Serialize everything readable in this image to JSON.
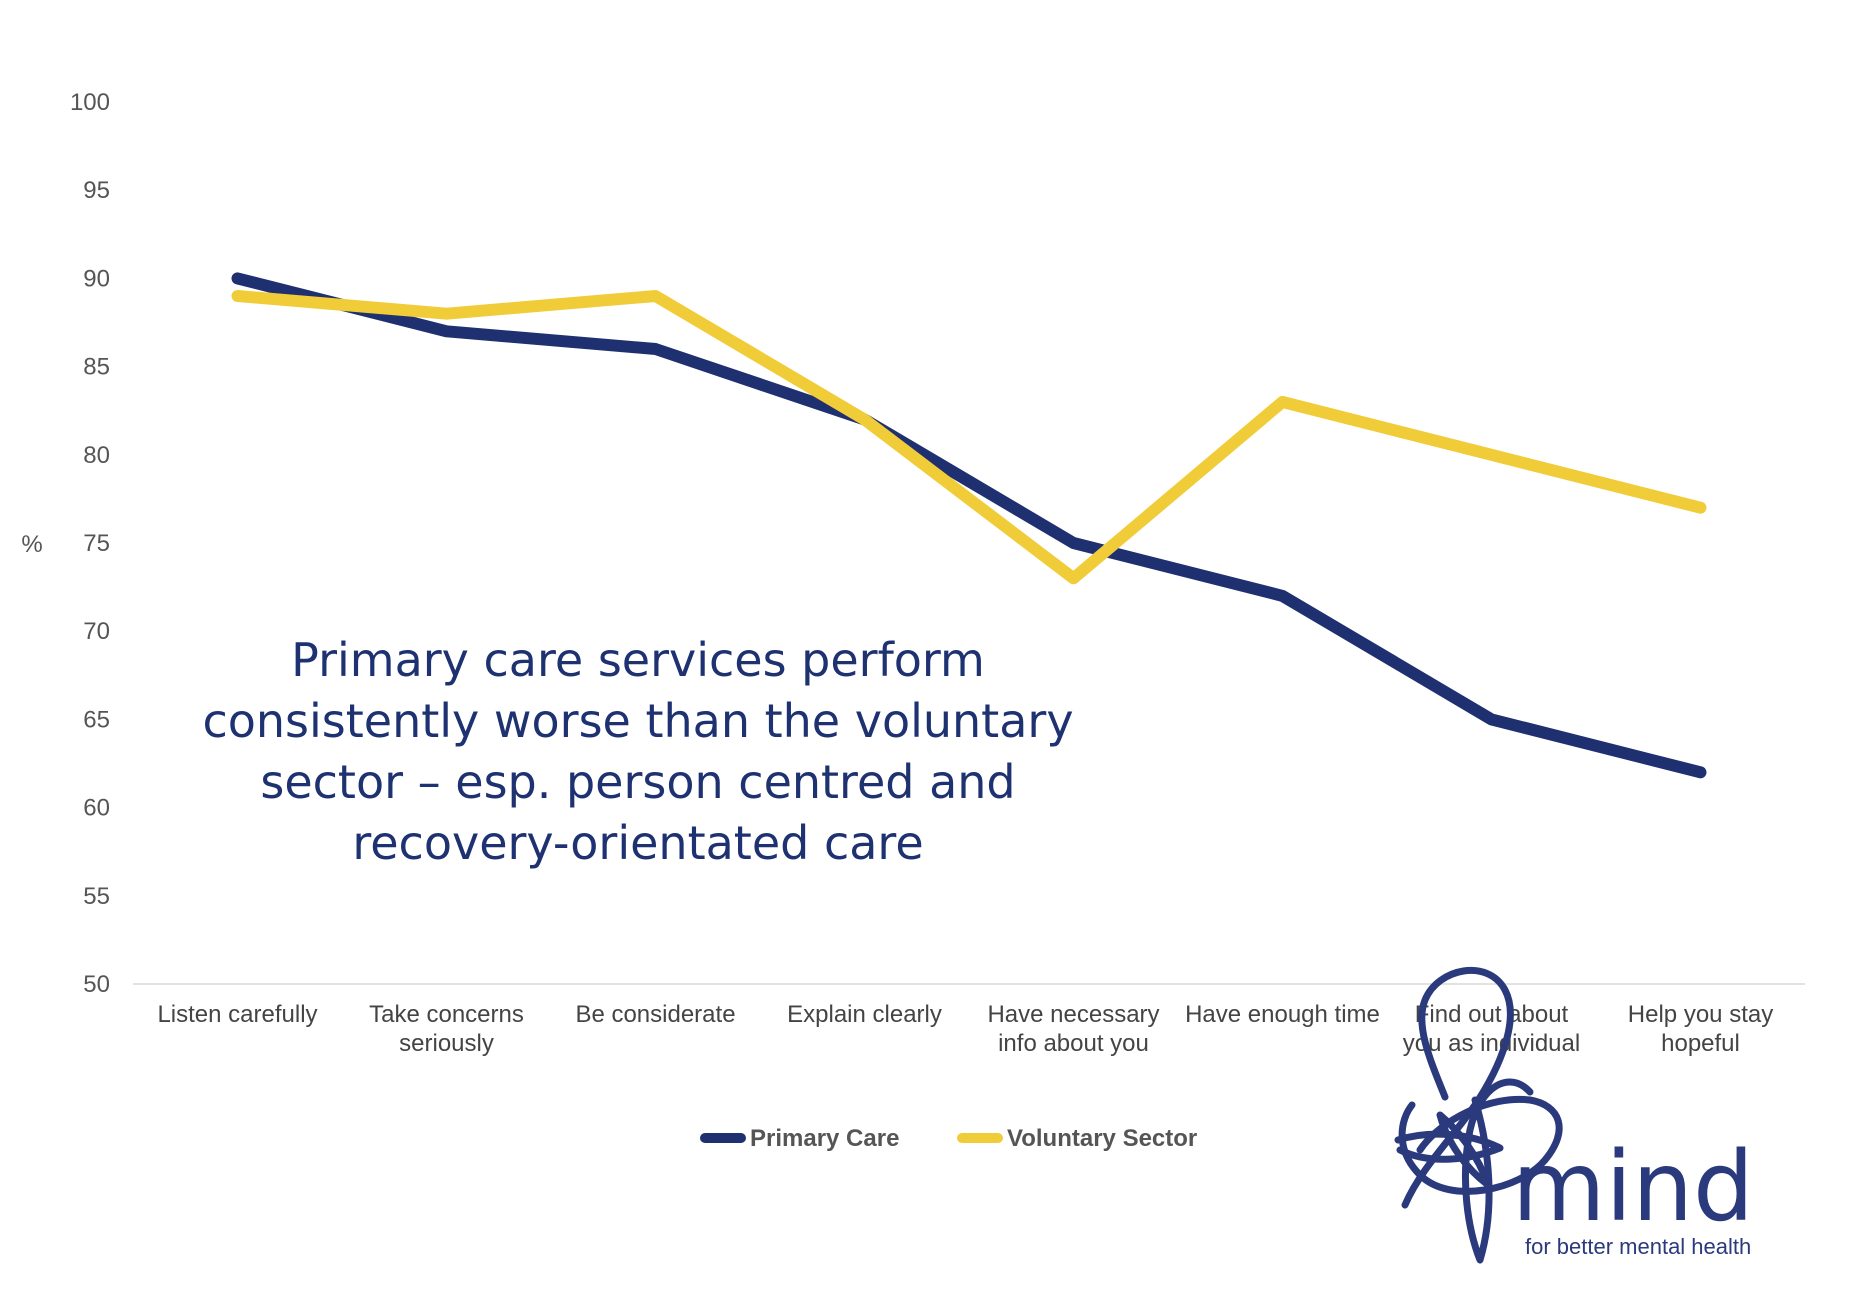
{
  "chart_data": {
    "type": "line",
    "ylabel": "%",
    "ylim": [
      50,
      100
    ],
    "yticks": [
      "100",
      "95",
      "90",
      "85",
      "80",
      "75",
      "70",
      "65",
      "60",
      "55",
      "50"
    ],
    "categories": [
      [
        "Listen carefully"
      ],
      [
        "Take concerns",
        "seriously"
      ],
      [
        "Be considerate"
      ],
      [
        "Explain clearly"
      ],
      [
        "Have necessary",
        "info about you"
      ],
      [
        "Have enough time"
      ],
      [
        "Find out about",
        "you as individual"
      ],
      [
        "Help you stay",
        "hopeful"
      ]
    ],
    "series": [
      {
        "name": "Primary Care",
        "color": "#1f3070",
        "values": [
          90,
          87,
          86,
          82,
          75,
          72,
          65,
          62
        ]
      },
      {
        "name": "Voluntary Sector",
        "color": "#f0cc38",
        "values": [
          89,
          88,
          89,
          82,
          73,
          83,
          80,
          77
        ]
      }
    ],
    "legend": {
      "position": "bottom"
    },
    "grid": false,
    "annotation": [
      "Primary care services perform",
      "consistently worse than the voluntary",
      "sector – esp. person centred and",
      "recovery-orientated care"
    ]
  },
  "logo": {
    "word": "mind",
    "tagline": "for better mental health",
    "color": "#2a3a7c"
  }
}
